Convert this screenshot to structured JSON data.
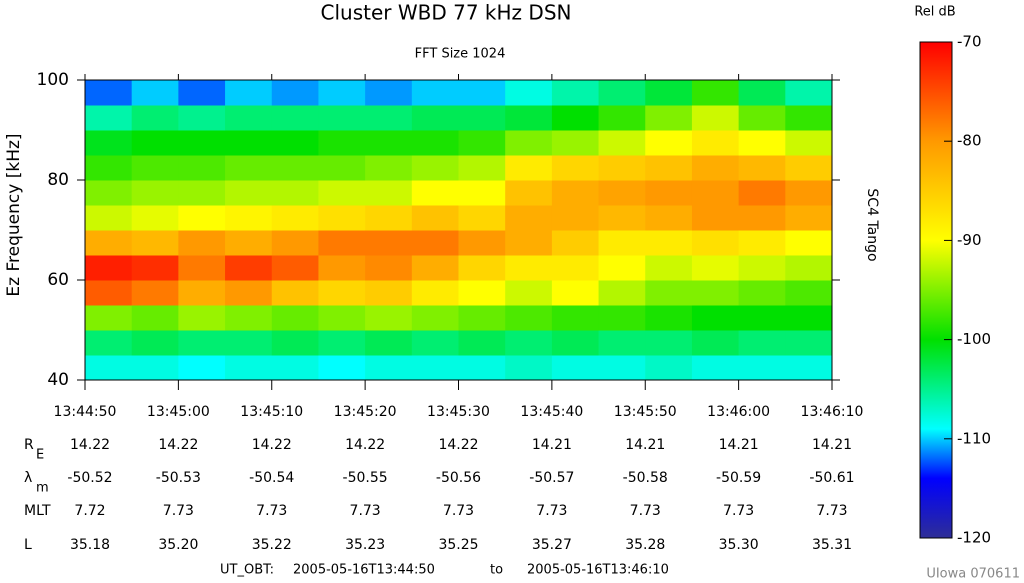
{
  "chart_data": {
    "type": "heatmap",
    "title": "Cluster WBD 77 kHz DSN",
    "subtitle": "FFT Size 1024",
    "y_label": "Ez Frequency [kHz]",
    "right_label": "SC4 Tango",
    "xlim": [
      49490,
      49570
    ],
    "xticks": [
      {
        "value": 49490,
        "label": "13:44:50"
      },
      {
        "value": 49500,
        "label": "13:45:00"
      },
      {
        "value": 49510,
        "label": "13:45:10"
      },
      {
        "value": 49520,
        "label": "13:45:20"
      },
      {
        "value": 49530,
        "label": "13:45:30"
      },
      {
        "value": 49540,
        "label": "13:45:40"
      },
      {
        "value": 49550,
        "label": "13:45:50"
      },
      {
        "value": 49560,
        "label": "13:46:00"
      },
      {
        "value": 49570,
        "label": "13:46:10"
      }
    ],
    "ylim": [
      40,
      100
    ],
    "yticks": [
      40,
      60,
      80,
      100
    ],
    "z": [
      [
        -108,
        -108,
        -109,
        -108,
        -108,
        -109,
        -108,
        -108,
        -108,
        -107,
        -108,
        -108,
        -107,
        -108,
        -108,
        -108
      ],
      [
        -104,
        -103,
        -104,
        -104,
        -103,
        -104,
        -103,
        -104,
        -103,
        -104,
        -103,
        -104,
        -104,
        -103,
        -104,
        -104
      ],
      [
        -95,
        -96,
        -94,
        -95,
        -96,
        -95,
        -94,
        -95,
        -96,
        -97,
        -98,
        -98,
        -99,
        -100,
        -100,
        -100
      ],
      [
        -76,
        -78,
        -82,
        -80,
        -84,
        -86,
        -85,
        -88,
        -90,
        -92,
        -90,
        -93,
        -95,
        -95,
        -96,
        -97
      ],
      [
        -72,
        -73,
        -78,
        -74,
        -76,
        -80,
        -79,
        -82,
        -86,
        -88,
        -88,
        -90,
        -92,
        -91,
        -92,
        -93
      ],
      [
        -82,
        -83,
        -80,
        -82,
        -80,
        -78,
        -78,
        -78,
        -80,
        -82,
        -85,
        -88,
        -88,
        -87,
        -88,
        -90
      ],
      [
        -92,
        -91,
        -90,
        -89,
        -88,
        -87,
        -86,
        -84,
        -86,
        -82,
        -82,
        -83,
        -82,
        -80,
        -80,
        -82
      ],
      [
        -95,
        -94,
        -94,
        -93,
        -93,
        -92,
        -92,
        -90,
        -90,
        -84,
        -82,
        -81,
        -80,
        -80,
        -78,
        -80
      ],
      [
        -98,
        -97,
        -97,
        -96,
        -96,
        -96,
        -95,
        -94,
        -93,
        -88,
        -86,
        -85,
        -84,
        -82,
        -83,
        -85
      ],
      [
        -101,
        -100,
        -100,
        -100,
        -100,
        -99,
        -99,
        -99,
        -98,
        -95,
        -94,
        -92,
        -90,
        -88,
        -90,
        -92
      ],
      [
        -106,
        -104,
        -105,
        -104,
        -104,
        -104,
        -104,
        -103,
        -103,
        -102,
        -100,
        -98,
        -95,
        -92,
        -96,
        -98
      ],
      [
        -112,
        -110,
        -112,
        -110,
        -111,
        -110,
        -111,
        -110,
        -110,
        -108,
        -106,
        -104,
        -102,
        -98,
        -103,
        -106
      ]
    ],
    "colorbar_label": "Rel dB",
    "zlim": [
      -120,
      -70
    ],
    "zticks": [
      -70,
      -80,
      -90,
      -100,
      -110,
      -120
    ],
    "colorscale": [
      {
        "value": -120,
        "color": "#2e2e96"
      },
      {
        "value": -114,
        "color": "#0000ff"
      },
      {
        "value": -109,
        "color": "#00ffff"
      },
      {
        "value": -100,
        "color": "#00e000"
      },
      {
        "value": -90,
        "color": "#ffff00"
      },
      {
        "value": -80,
        "color": "#ff9900"
      },
      {
        "value": -70,
        "color": "#ff0000"
      }
    ],
    "ephemeris": [
      {
        "label": "R",
        "sub": "E",
        "values": [
          "14.22",
          "14.22",
          "14.22",
          "14.22",
          "14.22",
          "14.21",
          "14.21",
          "14.21",
          "14.21"
        ]
      },
      {
        "label": "λ",
        "sub": "m",
        "values": [
          "-50.52",
          "-50.53",
          "-50.54",
          "-50.55",
          "-50.56",
          "-50.57",
          "-50.58",
          "-50.59",
          "-50.61"
        ]
      },
      {
        "label": "MLT",
        "values": [
          "7.72",
          "7.73",
          "7.73",
          "7.73",
          "7.73",
          "7.73",
          "7.73",
          "7.73",
          "7.73"
        ]
      },
      {
        "label": "L",
        "values": [
          "35.18",
          "35.20",
          "35.22",
          "35.23",
          "35.25",
          "35.27",
          "35.28",
          "35.30",
          "35.31"
        ]
      }
    ],
    "footer": {
      "prefix": "UT_OBT:",
      "start": "2005-05-16T13:44:50",
      "joiner": "to",
      "end": "2005-05-16T13:46:10"
    },
    "credit": "UIowa 070611"
  }
}
